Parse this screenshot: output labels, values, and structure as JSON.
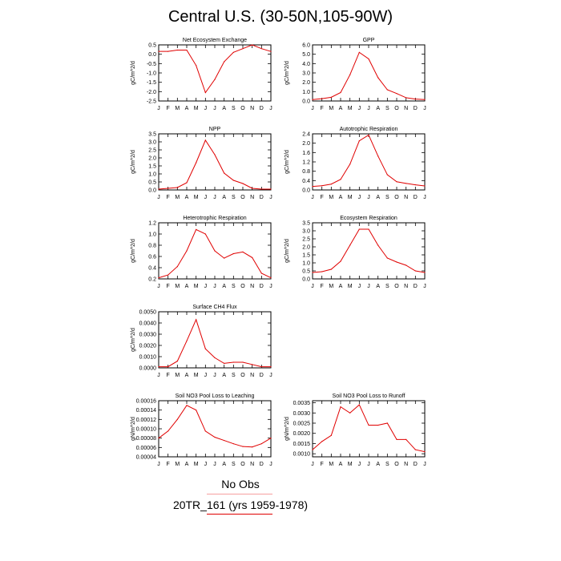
{
  "page": {
    "title": "Central U.S. (30-50N,105-90W)",
    "legend": {
      "obs_label": "No Obs",
      "case_label": "20TR_161 (yrs 1959-1978)",
      "obs_color": "#f6a0a0",
      "case_color": "#e00000"
    }
  },
  "chart_data": [
    {
      "type": "line",
      "title": "Net Ecosystem Exchange",
      "ylabel": "gC/m^2/d",
      "xlabel": "",
      "categories": [
        "J",
        "F",
        "M",
        "A",
        "M",
        "J",
        "J",
        "A",
        "S",
        "O",
        "N",
        "D",
        "J"
      ],
      "yticks": [
        "0.5",
        "0.0",
        "-0.5",
        "-1.0",
        "-1.5",
        "-2.0",
        "-2.5"
      ],
      "ylim": [
        -2.5,
        0.5
      ],
      "series": [
        {
          "values": [
            0.15,
            0.15,
            0.22,
            0.22,
            -0.6,
            -2.05,
            -1.35,
            -0.4,
            0.1,
            0.3,
            0.5,
            0.3,
            0.15
          ],
          "color": "#e00000"
        }
      ]
    },
    {
      "type": "line",
      "title": "GPP",
      "ylabel": "gC/m^2/d",
      "xlabel": "",
      "categories": [
        "J",
        "F",
        "M",
        "A",
        "M",
        "J",
        "J",
        "A",
        "S",
        "O",
        "N",
        "D",
        "J"
      ],
      "yticks": [
        "6.0",
        "5.0",
        "4.0",
        "3.0",
        "2.0",
        "1.0",
        "0.0"
      ],
      "ylim": [
        0,
        6
      ],
      "series": [
        {
          "values": [
            0.15,
            0.25,
            0.4,
            0.9,
            2.8,
            5.2,
            4.5,
            2.5,
            1.2,
            0.8,
            0.35,
            0.2,
            0.15
          ],
          "color": "#e00000"
        }
      ]
    },
    {
      "type": "line",
      "title": "NPP",
      "ylabel": "gC/m^2/d",
      "xlabel": "",
      "categories": [
        "J",
        "F",
        "M",
        "A",
        "M",
        "J",
        "J",
        "A",
        "S",
        "O",
        "N",
        "D",
        "J"
      ],
      "yticks": [
        "3.5",
        "3.0",
        "2.5",
        "2.0",
        "1.5",
        "1.0",
        "0.5",
        "0.0"
      ],
      "ylim": [
        0,
        3.5
      ],
      "series": [
        {
          "values": [
            0.05,
            0.1,
            0.15,
            0.45,
            1.7,
            3.1,
            2.2,
            1.05,
            0.6,
            0.4,
            0.1,
            0.05,
            0.05
          ],
          "color": "#e00000"
        }
      ]
    },
    {
      "type": "line",
      "title": "Autotrophic Respiration",
      "ylabel": "gC/m^2/d",
      "xlabel": "",
      "categories": [
        "J",
        "F",
        "M",
        "A",
        "M",
        "J",
        "J",
        "A",
        "S",
        "O",
        "N",
        "D",
        "J"
      ],
      "yticks": [
        "2.4",
        "2.0",
        "1.6",
        "1.2",
        "0.8",
        "0.4",
        "0.0"
      ],
      "ylim": [
        0,
        2.4
      ],
      "series": [
        {
          "values": [
            0.15,
            0.18,
            0.25,
            0.45,
            1.1,
            2.1,
            2.35,
            1.45,
            0.65,
            0.35,
            0.28,
            0.22,
            0.17
          ],
          "color": "#e00000"
        }
      ]
    },
    {
      "type": "line",
      "title": "Heterotrophic Respiration",
      "ylabel": "gC/m^2/d",
      "xlabel": "",
      "categories": [
        "J",
        "F",
        "M",
        "A",
        "M",
        "J",
        "J",
        "A",
        "S",
        "O",
        "N",
        "D",
        "J"
      ],
      "yticks": [
        "1.2",
        "1.0",
        "0.8",
        "0.6",
        "0.4",
        "0.2"
      ],
      "ylim": [
        0.2,
        1.2
      ],
      "series": [
        {
          "values": [
            0.22,
            0.27,
            0.42,
            0.7,
            1.08,
            1.0,
            0.7,
            0.57,
            0.65,
            0.68,
            0.58,
            0.3,
            0.22
          ],
          "color": "#e00000"
        }
      ]
    },
    {
      "type": "line",
      "title": "Ecosystem Respiration",
      "ylabel": "gC/m^2/d",
      "xlabel": "",
      "categories": [
        "J",
        "F",
        "M",
        "A",
        "M",
        "J",
        "J",
        "A",
        "S",
        "O",
        "N",
        "D",
        "J"
      ],
      "yticks": [
        "3.5",
        "3.0",
        "2.5",
        "2.0",
        "1.5",
        "1.0",
        "0.5",
        "0.0"
      ],
      "ylim": [
        0,
        3.5
      ],
      "series": [
        {
          "values": [
            0.4,
            0.45,
            0.6,
            1.1,
            2.1,
            3.1,
            3.1,
            2.1,
            1.3,
            1.05,
            0.85,
            0.5,
            0.4
          ],
          "color": "#e00000"
        }
      ]
    },
    {
      "type": "line",
      "title": "Surface CH4 Flux",
      "ylabel": "gC/m^2/d",
      "xlabel": "",
      "categories": [
        "J",
        "F",
        "M",
        "A",
        "M",
        "J",
        "J",
        "A",
        "S",
        "O",
        "N",
        "D",
        "J"
      ],
      "yticks": [
        "0.0050",
        "0.0040",
        "0.0030",
        "0.0020",
        "0.0010",
        "0.0000"
      ],
      "ylim": [
        0,
        0.005
      ],
      "series": [
        {
          "values": [
            0.0001,
            0.0001,
            0.0006,
            0.0024,
            0.0043,
            0.0017,
            0.0009,
            0.0004,
            0.0005,
            0.0005,
            0.0003,
            0.0001,
            0.0001
          ],
          "color": "#e00000"
        }
      ]
    },
    {
      "type": "line",
      "title": "Soil NO3 Pool Loss to Leaching",
      "ylabel": "gN/m^2/d",
      "xlabel": "",
      "categories": [
        "J",
        "F",
        "M",
        "A",
        "M",
        "J",
        "J",
        "A",
        "S",
        "O",
        "N",
        "D",
        "J"
      ],
      "yticks": [
        "0.00016",
        "0.00014",
        "0.00012",
        "0.00010",
        "0.00008",
        "0.00006",
        "0.00004"
      ],
      "ylim": [
        4e-05,
        0.00016
      ],
      "series": [
        {
          "values": [
            8e-05,
            9.5e-05,
            0.00012,
            0.00015,
            0.00014,
            9.5e-05,
            8.2e-05,
            7.5e-05,
            6.8e-05,
            6.2e-05,
            6.1e-05,
            6.8e-05,
            8e-05
          ],
          "color": "#e00000"
        }
      ]
    },
    {
      "type": "line",
      "title": "Soil NO3 Pool Loss to Runoff",
      "ylabel": "gN/m^2/d",
      "xlabel": "",
      "categories": [
        "J",
        "F",
        "M",
        "A",
        "M",
        "J",
        "J",
        "A",
        "S",
        "O",
        "N",
        "D",
        "J"
      ],
      "yticks": [
        "0.0035",
        "0.0030",
        "0.0025",
        "0.0020",
        "0.0015",
        "0.0010"
      ],
      "ylim": [
        0.00085,
        0.0036
      ],
      "series": [
        {
          "values": [
            0.0012,
            0.0016,
            0.0019,
            0.0033,
            0.003,
            0.0034,
            0.0024,
            0.0024,
            0.0025,
            0.0017,
            0.0017,
            0.0012,
            0.0011
          ],
          "color": "#e00000"
        }
      ]
    }
  ]
}
